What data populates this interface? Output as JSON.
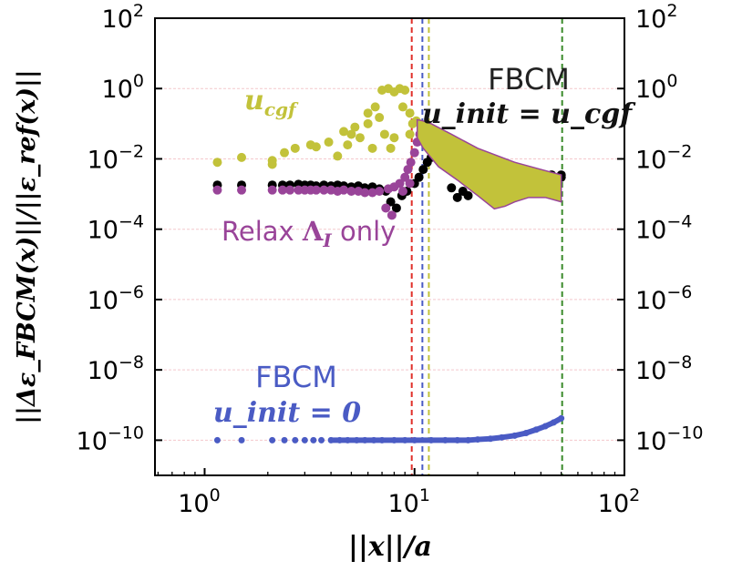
{
  "chart_data": {
    "type": "scatter",
    "xscale": "log",
    "yscale": "log",
    "xlim": [
      0.58,
      100
    ],
    "ylim": [
      1e-11,
      100
    ],
    "xlabel": "||x||/a",
    "ylabel": "||Δε_FBCM(x)||/||ε_ref(x)||",
    "xticks": [
      {
        "v": 1,
        "base": "10",
        "exp": "0"
      },
      {
        "v": 10,
        "base": "10",
        "exp": "1"
      },
      {
        "v": 100,
        "base": "10",
        "exp": "2"
      }
    ],
    "yticks": [
      {
        "v": 100,
        "base": "10",
        "exp": "2"
      },
      {
        "v": 1,
        "base": "10",
        "exp": "0"
      },
      {
        "v": 0.01,
        "base": "10",
        "exp": "−2"
      },
      {
        "v": 0.0001,
        "base": "10",
        "exp": "−4"
      },
      {
        "v": 1e-06,
        "base": "10",
        "exp": "−6"
      },
      {
        "v": 1e-08,
        "base": "10",
        "exp": "−8"
      },
      {
        "v": 1e-10,
        "base": "10",
        "exp": "−10"
      }
    ],
    "grid": "horizontal at each decade, light pink",
    "vlines": [
      {
        "x": 9.7,
        "color": "#e0302a"
      },
      {
        "x": 10.9,
        "color": "#4a5bc4"
      },
      {
        "x": 11.7,
        "color": "#c2c23a"
      },
      {
        "x": 50.5,
        "color": "#3a8a2a"
      }
    ],
    "annotations": [
      {
        "text": "u_cgf",
        "main": "u",
        "sub": "cgf",
        "color": "#c2c23a"
      },
      {
        "text": "FBCM",
        "color": "#222222"
      },
      {
        "text": "u_init = u_cgf",
        "color": "#111111"
      },
      {
        "text": "Relax Λ_I only",
        "pre": "Relax ",
        "sym": "Λ",
        "sub": "I",
        "post": " only",
        "color": "#994499"
      },
      {
        "text": "FBCM",
        "color": "#4a5bc4"
      },
      {
        "text": "u_init = 0",
        "color": "#4a5bc4"
      }
    ],
    "series": [
      {
        "color": "#000000",
        "points": [
          [
            1.15,
            0.0018
          ],
          [
            1.5,
            0.0018
          ],
          [
            2.1,
            0.0018
          ],
          [
            2.35,
            0.0018
          ],
          [
            2.55,
            0.0018
          ],
          [
            2.8,
            0.0019
          ],
          [
            3.0,
            0.0018
          ],
          [
            3.2,
            0.0018
          ],
          [
            3.4,
            0.0017
          ],
          [
            3.7,
            0.0018
          ],
          [
            4.0,
            0.0017
          ],
          [
            4.3,
            0.0018
          ],
          [
            4.6,
            0.0017
          ],
          [
            5.0,
            0.0016
          ],
          [
            5.4,
            0.0017
          ],
          [
            5.8,
            0.0015
          ],
          [
            6.3,
            0.0016
          ],
          [
            6.8,
            0.0014
          ],
          [
            7.3,
            0.0012
          ],
          [
            7.7,
            0.0006
          ],
          [
            8.2,
            0.0004
          ],
          [
            8.7,
            0.0009
          ],
          [
            9.2,
            0.0012
          ],
          [
            10,
            0.002
          ],
          [
            10.5,
            0.003
          ],
          [
            11,
            0.005
          ],
          [
            11.5,
            0.008
          ],
          [
            12,
            0.011
          ],
          [
            13,
            0.01
          ],
          [
            14,
            0.009
          ],
          [
            15,
            0.0015
          ],
          [
            16,
            0.0008
          ],
          [
            17,
            0.0012
          ],
          [
            18,
            0.0009
          ],
          [
            16,
            0.008
          ],
          [
            18,
            0.007
          ],
          [
            20,
            0.006
          ],
          [
            22,
            0.0052
          ],
          [
            25,
            0.0045
          ],
          [
            28,
            0.004
          ],
          [
            31,
            0.0038
          ],
          [
            35,
            0.0036
          ],
          [
            40,
            0.0035
          ],
          [
            45,
            0.0035
          ],
          [
            50,
            0.0035
          ],
          [
            22,
            0.004
          ],
          [
            26,
            0.0035
          ],
          [
            30,
            0.003
          ],
          [
            35,
            0.003
          ],
          [
            40,
            0.003
          ],
          [
            45,
            0.003
          ],
          [
            50,
            0.003
          ]
        ]
      },
      {
        "color": "#994499",
        "points": [
          [
            1.15,
            0.0013
          ],
          [
            1.5,
            0.0013
          ],
          [
            2.1,
            0.0013
          ],
          [
            2.35,
            0.0013
          ],
          [
            2.55,
            0.0013
          ],
          [
            2.8,
            0.0013
          ],
          [
            3.0,
            0.0013
          ],
          [
            3.2,
            0.0013
          ],
          [
            3.4,
            0.0013
          ],
          [
            3.7,
            0.0013
          ],
          [
            4.0,
            0.0013
          ],
          [
            4.3,
            0.0012
          ],
          [
            4.6,
            0.0013
          ],
          [
            5.0,
            0.0012
          ],
          [
            5.4,
            0.0012
          ],
          [
            5.8,
            0.0011
          ],
          [
            6.3,
            0.0011
          ],
          [
            6.8,
            0.0012
          ],
          [
            7.3,
            0.0004
          ],
          [
            7.8,
            0.00025
          ],
          [
            7.5,
            0.0014
          ],
          [
            8.0,
            0.0016
          ],
          [
            8.5,
            0.002
          ],
          [
            9.0,
            0.003
          ],
          [
            9.3,
            0.005
          ],
          [
            9.6,
            0.008
          ],
          [
            10,
            0.015
          ],
          [
            10.3,
            0.03
          ],
          [
            10.6,
            0.05
          ],
          [
            11,
            0.08
          ],
          [
            8.8,
            0.0012
          ],
          [
            9.5,
            0.002
          ]
        ]
      },
      {
        "color": "#c2c23a",
        "points": [
          [
            1.15,
            0.008
          ],
          [
            1.5,
            0.011
          ],
          [
            2.1,
            0.007
          ],
          [
            2.1,
            0.009
          ],
          [
            2.4,
            0.015
          ],
          [
            2.7,
            0.02
          ],
          [
            3.2,
            0.025
          ],
          [
            3.4,
            0.022
          ],
          [
            3.9,
            0.03
          ],
          [
            4.3,
            0.012
          ],
          [
            4.6,
            0.06
          ],
          [
            5.0,
            0.05
          ],
          [
            5.5,
            0.04
          ],
          [
            6.0,
            0.1
          ],
          [
            6.0,
            0.2
          ],
          [
            6.5,
            0.3
          ],
          [
            6.8,
            0.15
          ],
          [
            7.0,
            0.9
          ],
          [
            7.5,
            1.0
          ],
          [
            8.0,
            0.8
          ],
          [
            8.5,
            1.0
          ],
          [
            9.0,
            0.9
          ],
          [
            7.2,
            0.05
          ],
          [
            8.0,
            0.04
          ],
          [
            8.8,
            0.3
          ],
          [
            9.5,
            0.2
          ],
          [
            9.5,
            0.05
          ],
          [
            6.3,
            0.02
          ],
          [
            7.7,
            0.02
          ],
          [
            5.2,
            0.08
          ],
          [
            4.8,
            0.025
          ],
          [
            9.8,
            0.1
          ],
          [
            10.2,
            0.12
          ]
        ]
      },
      {
        "color": "#4a5bc4",
        "points": [
          [
            1.15,
            1e-10
          ],
          [
            1.5,
            1e-10
          ],
          [
            2.1,
            1e-10
          ],
          [
            2.4,
            1e-10
          ],
          [
            2.7,
            1e-10
          ],
          [
            3.0,
            1e-10
          ],
          [
            3.3,
            1e-10
          ],
          [
            3.6,
            1e-10
          ],
          [
            4.0,
            1e-10
          ],
          [
            4.4,
            1e-10
          ],
          [
            4.8,
            1e-10
          ],
          [
            5.3,
            1e-10
          ],
          [
            5.8,
            1e-10
          ],
          [
            6.4,
            1e-10
          ],
          [
            7,
            1e-10
          ],
          [
            8,
            1e-10
          ],
          [
            9,
            1e-10
          ],
          [
            10,
            1e-10
          ],
          [
            12,
            1e-10
          ],
          [
            14,
            1e-10
          ],
          [
            16,
            1e-10
          ],
          [
            18,
            1e-10
          ],
          [
            20,
            1.05e-10
          ],
          [
            23,
            1.1e-10
          ],
          [
            26,
            1.2e-10
          ],
          [
            30,
            1.35e-10
          ],
          [
            34,
            1.6e-10
          ],
          [
            38,
            2e-10
          ],
          [
            42,
            2.5e-10
          ],
          [
            46,
            3.2e-10
          ],
          [
            50,
            4.2e-10
          ]
        ]
      }
    ],
    "bands": [
      {
        "color": "#c2c23a",
        "edge": "#994499",
        "upper": [
          [
            10.3,
            0.13
          ],
          [
            11,
            0.12
          ],
          [
            12,
            0.1
          ],
          [
            15,
            0.05
          ],
          [
            20,
            0.02
          ],
          [
            30,
            0.008
          ],
          [
            40,
            0.005
          ],
          [
            50,
            0.0035
          ]
        ],
        "lower": [
          [
            50,
            0.0006
          ],
          [
            42,
            0.0008
          ],
          [
            35,
            0.0008
          ],
          [
            30,
            0.0006
          ],
          [
            27,
            0.00045
          ],
          [
            24,
            0.00038
          ],
          [
            20,
            0.0009
          ],
          [
            16,
            0.0025
          ],
          [
            13,
            0.006
          ],
          [
            11,
            0.02
          ],
          [
            10.3,
            0.04
          ]
        ]
      }
    ]
  }
}
